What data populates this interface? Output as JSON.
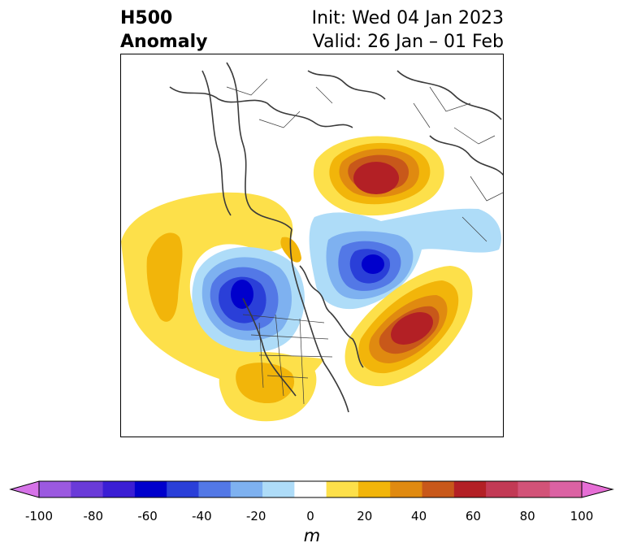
{
  "title": {
    "left_line1": "H500",
    "left_line2": "Anomaly",
    "right_line1": "Init: Wed 04 Jan 2023",
    "right_line2": "Valid: 26 Jan – 01 Feb"
  },
  "colorbar": {
    "unit": "m",
    "ticks": [
      "-100",
      "-80",
      "-60",
      "-40",
      "-20",
      "0",
      "20",
      "40",
      "60",
      "80",
      "100"
    ],
    "colors": [
      "#d673e8",
      "#9b59e0",
      "#6a3bd8",
      "#3b1ed4",
      "#0000cc",
      "#2a3fd8",
      "#5378e6",
      "#7eb1f0",
      "#aedcf8",
      "#ffffff",
      "#fde04a",
      "#f2b50a",
      "#e08a10",
      "#c8581a",
      "#b32025",
      "#c23a55",
      "#d25378",
      "#db62a3",
      "#e66ed5"
    ]
  },
  "map": {
    "features": [
      {
        "name": "ridge-west-pacific",
        "sign": "positive",
        "peak": 20
      },
      {
        "name": "trough-western-canada",
        "sign": "negative",
        "peak": -70
      },
      {
        "name": "ridge-russia-arctic",
        "sign": "positive",
        "peak": 60
      },
      {
        "name": "trough-greenland-baffin",
        "sign": "negative",
        "peak": -60
      },
      {
        "name": "ridge-north-atlantic",
        "sign": "positive",
        "peak": 60
      },
      {
        "name": "ridge-southern-us",
        "sign": "positive",
        "peak": 20
      }
    ]
  }
}
